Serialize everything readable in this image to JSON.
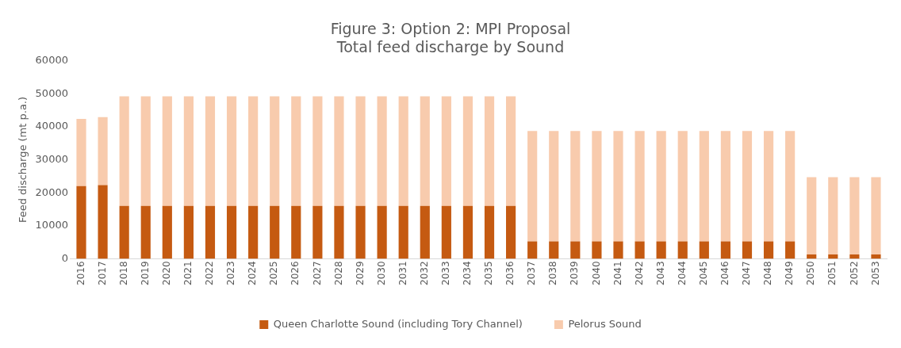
{
  "chart_data": {
    "type": "bar",
    "title": [
      "Figure 3: Option 2: MPI Proposal",
      "Total feed discharge by Sound"
    ],
    "ylabel": "Feed discharge (mt p.a.)",
    "categories": [
      "2016",
      "2017",
      "2018",
      "2019",
      "2020",
      "2021",
      "2022",
      "2023",
      "2024",
      "2025",
      "2026",
      "2027",
      "2028",
      "2029",
      "2030",
      "2031",
      "2032",
      "2033",
      "2034",
      "2035",
      "2036",
      "2037",
      "2038",
      "2039",
      "2040",
      "2041",
      "2042",
      "2043",
      "2044",
      "2045",
      "2046",
      "2047",
      "2048",
      "2049",
      "2050",
      "2051",
      "2052",
      "2053"
    ],
    "stacked": true,
    "series": [
      {
        "name": "Queen Charlotte Sound (including Tory Channel)",
        "color": "#c55a11",
        "values": [
          22000,
          22300,
          16000,
          16000,
          16000,
          16000,
          16000,
          16000,
          16000,
          16000,
          16000,
          16000,
          16000,
          16000,
          16000,
          16000,
          16000,
          16000,
          16000,
          16000,
          16000,
          5300,
          5300,
          5300,
          5300,
          5300,
          5300,
          5300,
          5300,
          5300,
          5300,
          5300,
          5300,
          5300,
          1300,
          1300,
          1300,
          1300
        ]
      },
      {
        "name": "Pelorus Sound",
        "color": "#f8cbad",
        "values": [
          20400,
          20600,
          33200,
          33200,
          33200,
          33200,
          33200,
          33200,
          33200,
          33200,
          33200,
          33200,
          33200,
          33200,
          33200,
          33200,
          33200,
          33200,
          33200,
          33200,
          33200,
          33400,
          33400,
          33400,
          33400,
          33400,
          33400,
          33400,
          33400,
          33400,
          33400,
          33400,
          33400,
          33400,
          23400,
          23400,
          23400,
          23400
        ]
      }
    ],
    "ylim": [
      0,
      60000
    ],
    "yticks": [
      0,
      10000,
      20000,
      30000,
      40000,
      50000,
      60000
    ],
    "grid": false,
    "legend": "bottom"
  }
}
